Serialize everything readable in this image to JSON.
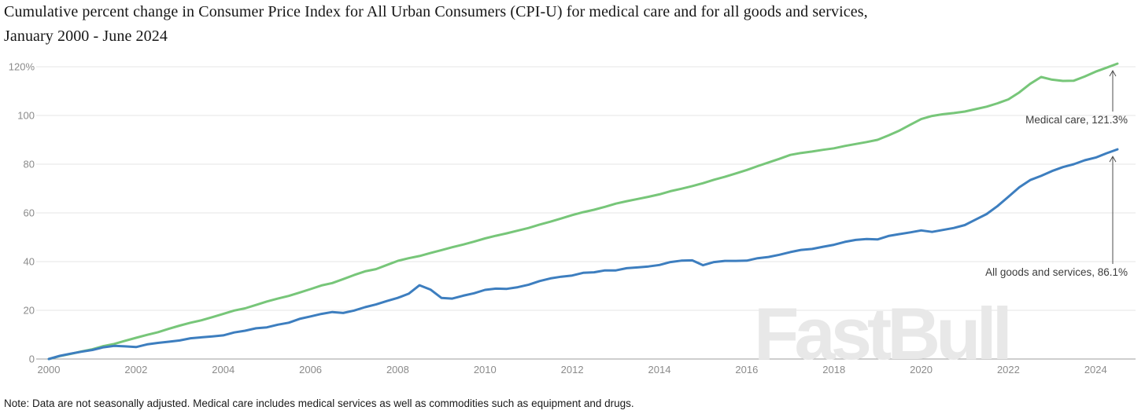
{
  "page": {
    "title": "Cumulative percent change in Consumer Price Index for All Urban Consumers (CPI-U) for medical care and for all goods and services, January 2000 - June 2024",
    "note": "Note: Data are not seasonally adjusted. Medical care includes medical services as well as commodities such as equipment and drugs.",
    "watermark": "FastBull"
  },
  "chart_data": {
    "type": "line",
    "title": "Cumulative percent change in Consumer Price Index for All Urban Consumers (CPI-U) for medical care and for all goods and services, January 2000 - June 2024",
    "xlabel": "",
    "ylabel": "",
    "xlim": [
      2000,
      2024.5
    ],
    "ylim": [
      0,
      125
    ],
    "grid": "horizontal",
    "legend_position": "end-of-line annotations",
    "yticks": [
      {
        "value": 0,
        "label": "0"
      },
      {
        "value": 20,
        "label": "20"
      },
      {
        "value": 40,
        "label": "40"
      },
      {
        "value": 60,
        "label": "60"
      },
      {
        "value": 80,
        "label": "80"
      },
      {
        "value": 100,
        "label": "100"
      },
      {
        "value": 120,
        "label": "120%"
      }
    ],
    "xticks": [
      2000,
      2002,
      2004,
      2006,
      2008,
      2010,
      2012,
      2014,
      2016,
      2018,
      2020,
      2022,
      2024
    ],
    "x": [
      2000,
      2000.25,
      2000.5,
      2000.75,
      2001,
      2001.25,
      2001.5,
      2001.75,
      2002,
      2002.25,
      2002.5,
      2002.75,
      2003,
      2003.25,
      2003.5,
      2003.75,
      2004,
      2004.25,
      2004.5,
      2004.75,
      2005,
      2005.25,
      2005.5,
      2005.75,
      2006,
      2006.25,
      2006.5,
      2006.75,
      2007,
      2007.25,
      2007.5,
      2007.75,
      2008,
      2008.25,
      2008.5,
      2008.75,
      2009,
      2009.25,
      2009.5,
      2009.75,
      2010,
      2010.25,
      2010.5,
      2010.75,
      2011,
      2011.25,
      2011.5,
      2011.75,
      2012,
      2012.25,
      2012.5,
      2012.75,
      2013,
      2013.25,
      2013.5,
      2013.75,
      2014,
      2014.25,
      2014.5,
      2014.75,
      2015,
      2015.25,
      2015.5,
      2015.75,
      2016,
      2016.25,
      2016.5,
      2016.75,
      2017,
      2017.25,
      2017.5,
      2017.75,
      2018,
      2018.25,
      2018.5,
      2018.75,
      2019,
      2019.25,
      2019.5,
      2019.75,
      2020,
      2020.25,
      2020.5,
      2020.75,
      2021,
      2021.25,
      2021.5,
      2021.75,
      2022,
      2022.25,
      2022.5,
      2022.75,
      2023,
      2023.25,
      2023.5,
      2023.75,
      2024,
      2024.25,
      2024.5
    ],
    "series": [
      {
        "id": "medical-care",
        "name": "Medical care",
        "color": "#77c679",
        "end_value": 121.3,
        "annotation": "Medical care, 121.3%",
        "values": [
          0,
          1.2,
          2.1,
          3.1,
          4,
          5.3,
          6.2,
          7.5,
          8.7,
          9.9,
          11,
          12.4,
          13.7,
          14.9,
          15.9,
          17.2,
          18.5,
          19.9,
          20.8,
          22.2,
          23.6,
          24.8,
          25.9,
          27.3,
          28.7,
          30.2,
          31.2,
          32.8,
          34.5,
          36,
          36.9,
          38.6,
          40.3,
          41.4,
          42.3,
          43.5,
          44.7,
          45.9,
          47,
          48.2,
          49.5,
          50.6,
          51.6,
          52.7,
          53.8,
          55.2,
          56.4,
          57.7,
          59.1,
          60.3,
          61.3,
          62.5,
          63.8,
          64.8,
          65.7,
          66.6,
          67.6,
          68.9,
          69.9,
          71,
          72.2,
          73.6,
          74.8,
          76.2,
          77.6,
          79.2,
          80.7,
          82.2,
          83.8,
          84.6,
          85.2,
          85.9,
          86.5,
          87.5,
          88.3,
          89.1,
          90,
          91.8,
          93.8,
          96.2,
          98.5,
          99.8,
          100.5,
          101,
          101.6,
          102.6,
          103.6,
          105,
          106.6,
          109.5,
          113,
          115.8,
          114.7,
          114.2,
          114.3,
          116,
          118,
          119.6,
          121.3
        ]
      },
      {
        "id": "all-goods-and-services",
        "name": "All goods and services",
        "color": "#3d7ebf",
        "end_value": 86.1,
        "annotation": "All goods and services, 86.1%",
        "values": [
          0,
          1.3,
          2.2,
          3,
          3.7,
          4.8,
          5.4,
          5.2,
          4.9,
          6,
          6.6,
          7.1,
          7.6,
          8.5,
          8.9,
          9.3,
          9.7,
          10.9,
          11.6,
          12.6,
          13,
          14.1,
          14.9,
          16.5,
          17.5,
          18.5,
          19.3,
          18.9,
          19.9,
          21.3,
          22.4,
          23.8,
          25.1,
          26.8,
          30.3,
          28.5,
          25.1,
          24.8,
          26,
          27,
          28.4,
          28.9,
          28.8,
          29.5,
          30.5,
          32,
          33.1,
          33.8,
          34.3,
          35.4,
          35.6,
          36.4,
          36.4,
          37.3,
          37.6,
          38,
          38.6,
          39.8,
          40.4,
          40.5,
          38.5,
          39.8,
          40.3,
          40.3,
          40.4,
          41.4,
          41.9,
          42.8,
          43.9,
          44.8,
          45.2,
          46.1,
          46.9,
          48.1,
          48.9,
          49.3,
          49.1,
          50.5,
          51.3,
          52,
          52.8,
          52.2,
          53,
          53.8,
          55,
          57.3,
          59.5,
          62.8,
          66.6,
          70.5,
          73.5,
          75.2,
          77.2,
          78.8,
          80,
          81.6,
          82.7,
          84.5,
          86.1
        ]
      }
    ]
  }
}
